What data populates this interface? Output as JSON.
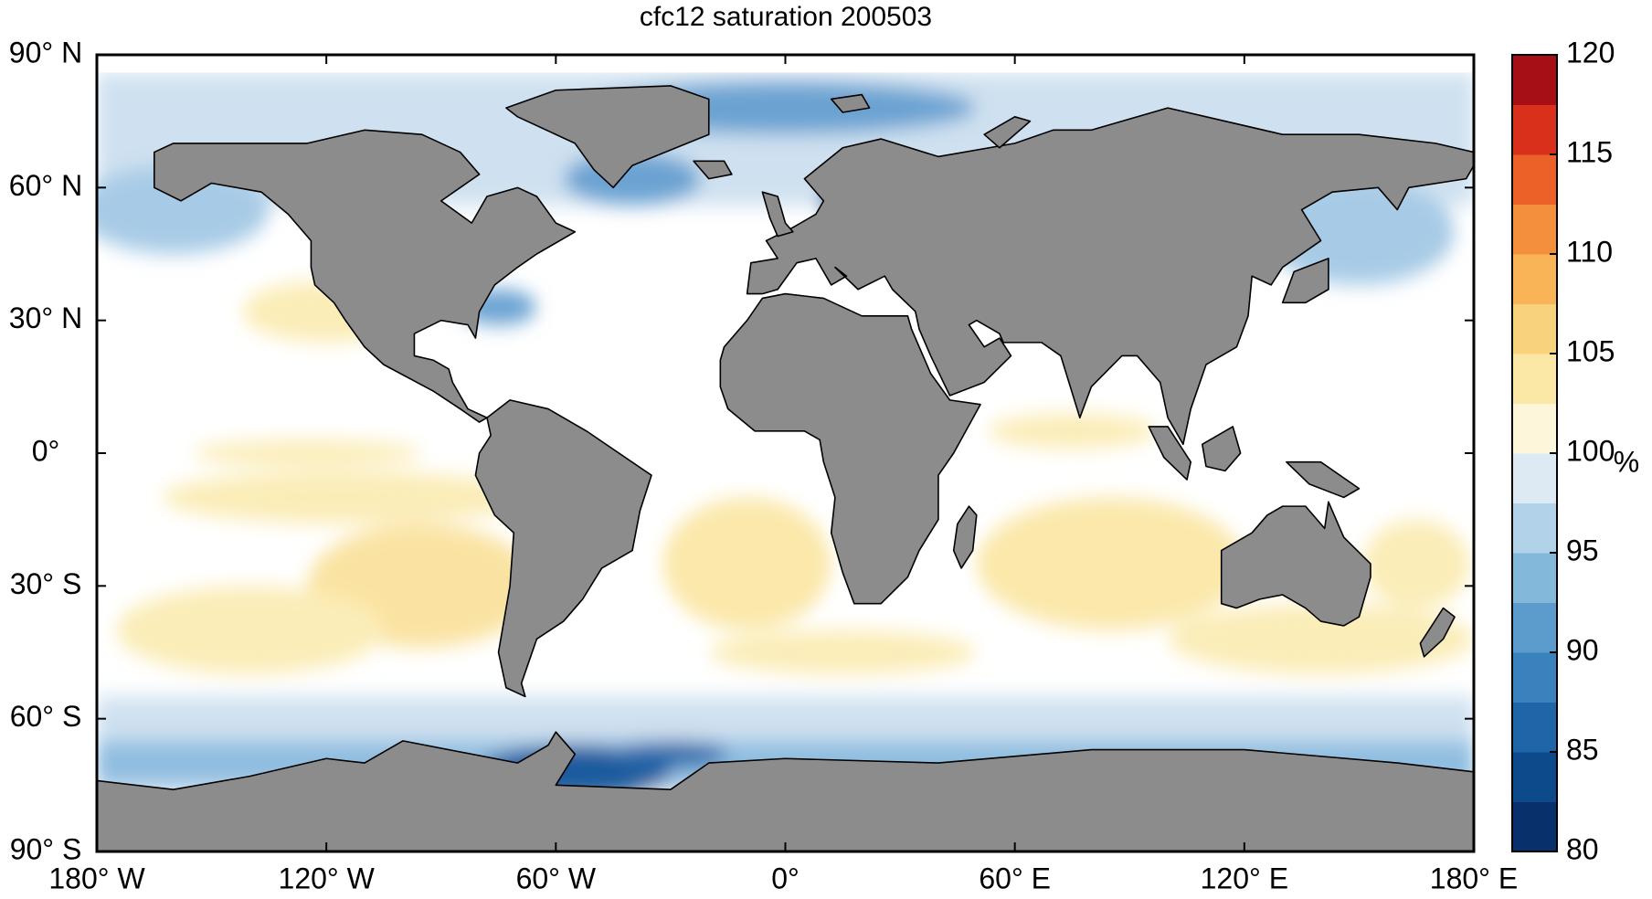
{
  "chart_data": {
    "type": "map",
    "title": "cfc12 saturation 200503",
    "xlim": [
      -180,
      180
    ],
    "ylim": [
      -90,
      90
    ],
    "xticks": [
      {
        "value": -180,
        "label": "180° W"
      },
      {
        "value": -120,
        "label": "120° W"
      },
      {
        "value": -60,
        "label": "60° W"
      },
      {
        "value": 0,
        "label": "0°"
      },
      {
        "value": 60,
        "label": "60° E"
      },
      {
        "value": 120,
        "label": "120° E"
      },
      {
        "value": 180,
        "label": "180° E"
      }
    ],
    "yticks": [
      {
        "value": 90,
        "label": "90° N"
      },
      {
        "value": 60,
        "label": "60° N"
      },
      {
        "value": 30,
        "label": "30° N"
      },
      {
        "value": 0,
        "label": "0°"
      },
      {
        "value": -30,
        "label": "30° S"
      },
      {
        "value": -60,
        "label": "60° S"
      },
      {
        "value": -90,
        "label": "90° S"
      }
    ],
    "colorbar": {
      "lim": [
        80,
        120
      ],
      "ticks": [
        80,
        85,
        90,
        95,
        100,
        105,
        110,
        115,
        120
      ],
      "label": "%",
      "colormap": [
        "#08306b",
        "#0d4a8c",
        "#1f66a8",
        "#3a82bd",
        "#5c9ccc",
        "#84b8db",
        "#b1d2e8",
        "#dde9f3",
        "#fdf6da",
        "#fbe8a6",
        "#f9d27c",
        "#f8b457",
        "#f4903b",
        "#ec6128",
        "#d9301c",
        "#a50f15"
      ]
    }
  }
}
